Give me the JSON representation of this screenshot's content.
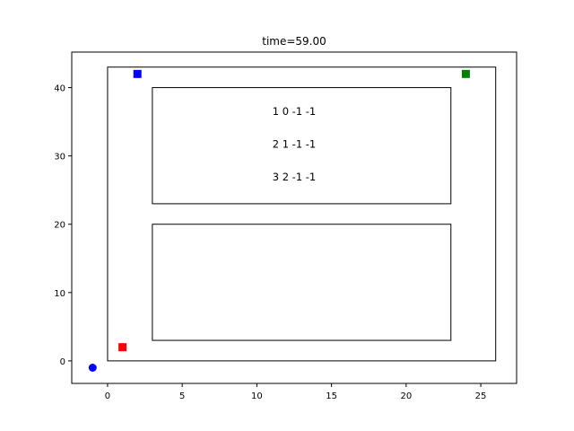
{
  "chart_data": {
    "type": "scatter",
    "title": "time=59.00",
    "xlabel": "",
    "ylabel": "",
    "xlim": [
      -2.4,
      27.4
    ],
    "ylim": [
      -3.3,
      45.2
    ],
    "x_ticks": [
      0,
      5,
      10,
      15,
      20,
      25
    ],
    "y_ticks": [
      0,
      10,
      20,
      30,
      40
    ],
    "grid": false,
    "legend": "none",
    "rectangles": [
      {
        "x0": 0,
        "y0": 0,
        "x1": 26,
        "y1": 43
      },
      {
        "x0": 3,
        "y0": 23,
        "x1": 23,
        "y1": 40
      },
      {
        "x0": 3,
        "y0": 3,
        "x1": 23,
        "y1": 20
      }
    ],
    "points": [
      {
        "x": -1,
        "y": -1,
        "marker": "circle",
        "color": "#0000ff"
      },
      {
        "x": 1,
        "y": 2,
        "marker": "square",
        "color": "#ff0000"
      },
      {
        "x": 2,
        "y": 42,
        "marker": "square",
        "color": "#0000ff"
      },
      {
        "x": 24,
        "y": 42,
        "marker": "square",
        "color": "#008000"
      }
    ],
    "annotations": [
      {
        "text": "1 0 -1 -1",
        "x": 12.5,
        "y": 36.5
      },
      {
        "text": "2 1 -1 -1",
        "x": 12.5,
        "y": 31.7
      },
      {
        "text": "3 2 -1 -1",
        "x": 12.5,
        "y": 26.9
      }
    ]
  }
}
